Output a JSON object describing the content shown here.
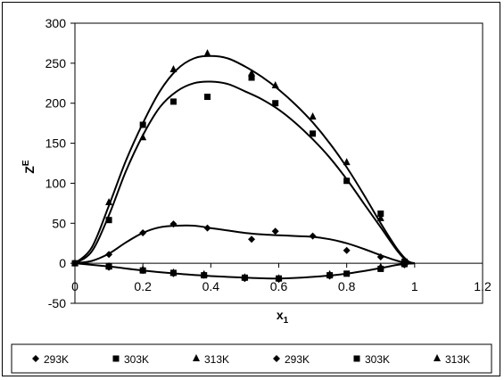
{
  "chart_data": {
    "type": "scatter",
    "xlabel": "x",
    "xlabel_subscript": "1",
    "ylabel": "Z",
    "ylabel_superscript": "E",
    "xlim": [
      0,
      1.2
    ],
    "ylim": [
      -50,
      300
    ],
    "x_ticks": [
      0,
      0.2,
      0.4,
      0.6,
      0.8,
      1,
      1.2
    ],
    "x_tick_labels": [
      "0",
      "0.2",
      "0.4",
      "0.6",
      "0.8",
      "1",
      "1.2"
    ],
    "y_ticks": [
      -50,
      0,
      50,
      100,
      150,
      200,
      250,
      300
    ],
    "y_tick_labels": [
      "-50",
      "0",
      "50",
      "100",
      "150",
      "200",
      "250",
      "300"
    ],
    "grid": false,
    "legend_position": "bottom",
    "series": [
      {
        "name": "293K",
        "marker": "diamond",
        "color": "#000000",
        "x": [
          0,
          0.1,
          0.2,
          0.29,
          0.39,
          0.52,
          0.59,
          0.7,
          0.8,
          0.9,
          0.97
        ],
        "y": [
          0,
          11,
          38,
          49,
          44,
          30,
          40,
          34,
          16,
          8,
          -2
        ]
      },
      {
        "name": "303K",
        "marker": "square",
        "color": "#000000",
        "x": [
          0,
          0.1,
          0.2,
          0.29,
          0.39,
          0.52,
          0.59,
          0.7,
          0.8,
          0.9,
          0.97
        ],
        "y": [
          0,
          54,
          173,
          202,
          208,
          232,
          200,
          162,
          103,
          62,
          2
        ]
      },
      {
        "name": "313K",
        "marker": "triangle",
        "color": "#000000",
        "x": [
          0,
          0.1,
          0.2,
          0.29,
          0.39,
          0.52,
          0.59,
          0.7,
          0.8,
          0.9,
          0.97
        ],
        "y": [
          0,
          76,
          157,
          242,
          262,
          237,
          222,
          183,
          126,
          56,
          0
        ]
      },
      {
        "name": "293K",
        "marker": "diamond",
        "color": "#000000",
        "x": [
          0.1,
          0.2,
          0.29,
          0.38,
          0.5,
          0.6,
          0.75,
          0.9,
          0.97
        ],
        "y": [
          -5,
          -9,
          -13,
          -15,
          -19,
          -20,
          -16,
          -6,
          -1
        ]
      },
      {
        "name": "303K",
        "marker": "square",
        "color": "#000000",
        "x": [
          0.1,
          0.2,
          0.29,
          0.38,
          0.5,
          0.6,
          0.75,
          0.8,
          0.9,
          0.97
        ],
        "y": [
          -4,
          -9,
          -12,
          -15,
          -18,
          -19,
          -15,
          -13,
          -7,
          -1
        ]
      },
      {
        "name": "313K",
        "marker": "triangle",
        "color": "#000000",
        "x": [
          0.1,
          0.2,
          0.29,
          0.38,
          0.5,
          0.6,
          0.75,
          0.9
        ],
        "y": [
          -4,
          -8,
          -12,
          -14,
          -18,
          -19,
          -14,
          -5
        ]
      }
    ],
    "fit_curves": [
      {
        "for_series": "293K",
        "x": [
          0,
          0.05,
          0.1,
          0.15,
          0.2,
          0.25,
          0.3,
          0.35,
          0.4,
          0.45,
          0.5,
          0.55,
          0.6,
          0.65,
          0.7,
          0.75,
          0.8,
          0.85,
          0.9,
          0.95,
          0.98,
          1.0
        ],
        "y": [
          0,
          3,
          12,
          26,
          38,
          45,
          47,
          47,
          44,
          41,
          38,
          36,
          35,
          34,
          33,
          30,
          25,
          18,
          10,
          3,
          0,
          0
        ]
      },
      {
        "for_series": "303K",
        "x": [
          0,
          0.05,
          0.1,
          0.15,
          0.2,
          0.25,
          0.3,
          0.35,
          0.4,
          0.45,
          0.5,
          0.55,
          0.6,
          0.65,
          0.7,
          0.75,
          0.8,
          0.85,
          0.9,
          0.95,
          0.98,
          1.0
        ],
        "y": [
          0,
          15,
          60,
          115,
          160,
          195,
          215,
          225,
          227,
          224,
          215,
          205,
          192,
          175,
          155,
          132,
          105,
          75,
          45,
          15,
          2,
          0
        ]
      },
      {
        "for_series": "313K",
        "x": [
          0,
          0.05,
          0.1,
          0.15,
          0.2,
          0.25,
          0.3,
          0.35,
          0.4,
          0.45,
          0.5,
          0.55,
          0.6,
          0.65,
          0.7,
          0.75,
          0.8,
          0.85,
          0.9,
          0.95,
          0.98,
          1.0
        ],
        "y": [
          0,
          20,
          72,
          128,
          175,
          215,
          242,
          256,
          259,
          256,
          246,
          233,
          217,
          198,
          176,
          150,
          120,
          86,
          50,
          17,
          3,
          0
        ]
      },
      {
        "for_series": "lower",
        "x": [
          0,
          0.1,
          0.2,
          0.3,
          0.4,
          0.5,
          0.6,
          0.7,
          0.8,
          0.9,
          0.95,
          1.0
        ],
        "y": [
          0,
          -4,
          -9,
          -13,
          -16,
          -18,
          -19,
          -17,
          -13,
          -6,
          -2,
          0
        ]
      }
    ]
  }
}
